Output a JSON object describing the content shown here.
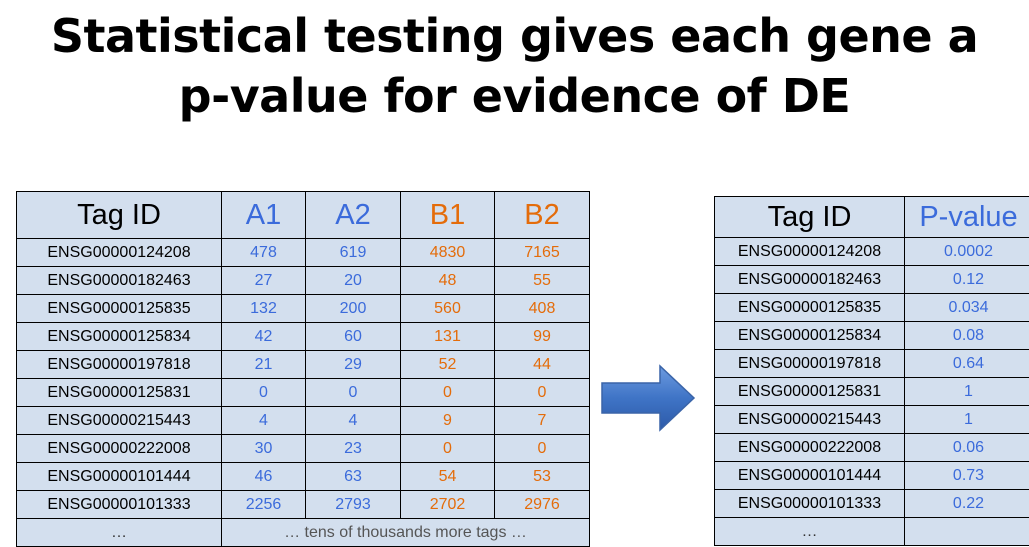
{
  "title": {
    "line1": "Statistical testing gives each gene a",
    "line2": "p-value for evidence of DE"
  },
  "left_table": {
    "headers": [
      "Tag ID",
      "A1",
      "A2",
      "B1",
      "B2"
    ],
    "rows": [
      [
        "ENSG00000124208",
        "478",
        "619",
        "4830",
        "7165"
      ],
      [
        "ENSG00000182463",
        "27",
        "20",
        "48",
        "55"
      ],
      [
        "ENSG00000125835",
        "132",
        "200",
        "560",
        "408"
      ],
      [
        "ENSG00000125834",
        "42",
        "60",
        "131",
        "99"
      ],
      [
        "ENSG00000197818",
        "21",
        "29",
        "52",
        "44"
      ],
      [
        "ENSG00000125831",
        "0",
        "0",
        "0",
        "0"
      ],
      [
        "ENSG00000215443",
        "4",
        "4",
        "9",
        "7"
      ],
      [
        "ENSG00000222008",
        "30",
        "23",
        "0",
        "0"
      ],
      [
        "ENSG00000101444",
        "46",
        "63",
        "54",
        "53"
      ],
      [
        "ENSG00000101333",
        "2256",
        "2793",
        "2702",
        "2976"
      ]
    ],
    "footer_id": "…",
    "footer_note": "… tens of thousands more tags …"
  },
  "right_table": {
    "headers": [
      "Tag ID",
      "P-value"
    ],
    "rows": [
      [
        "ENSG00000124208",
        "0.0002"
      ],
      [
        "ENSG00000182463",
        "0.12"
      ],
      [
        "ENSG00000125835",
        "0.034"
      ],
      [
        "ENSG00000125834",
        "0.08"
      ],
      [
        "ENSG00000197818",
        "0.64"
      ],
      [
        "ENSG00000125831",
        "1"
      ],
      [
        "ENSG00000215443",
        "1"
      ],
      [
        "ENSG00000222008",
        "0.06"
      ],
      [
        "ENSG00000101444",
        "0.73"
      ],
      [
        "ENSG00000101333",
        "0.22"
      ]
    ],
    "footer_id": "…",
    "footer_value": ""
  },
  "colors": {
    "group_a": "#3b6bdb",
    "group_b": "#e46c0a",
    "cell_background": "#d3dfee",
    "arrow": "#3f74c6"
  },
  "icons": [
    "right-arrow-icon"
  ]
}
